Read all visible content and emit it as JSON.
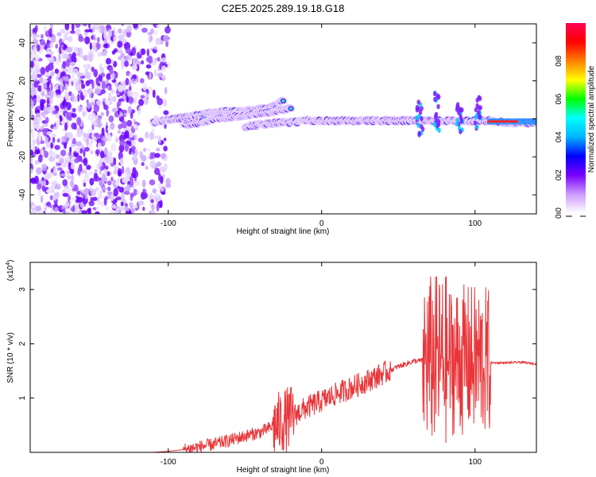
{
  "chart_data": [
    {
      "type": "heatmap",
      "title": "C2E5.2025.289.19.18.G18",
      "xlabel": "Height of straight line (km)",
      "ylabel": "Frequency (Hz)",
      "xlim": [
        -190,
        140
      ],
      "ylim": [
        -50,
        50
      ],
      "xticks": [
        -100,
        0,
        100
      ],
      "yticks": [
        -40,
        -20,
        0,
        20,
        40
      ],
      "tracks": [
        {
          "x": [
            -110,
            -95,
            -80,
            -65,
            -50,
            -40,
            -30,
            -25
          ],
          "y": [
            -2,
            0,
            2,
            4,
            4,
            5,
            7,
            10
          ]
        },
        {
          "x": [
            -90,
            -80,
            -70,
            -60,
            -50,
            -40,
            -30,
            -20
          ],
          "y": [
            -3,
            -2,
            0,
            1,
            2,
            3,
            4,
            6
          ]
        },
        {
          "x": [
            -50,
            -40,
            -30,
            -20,
            -10,
            0,
            10,
            20,
            30,
            40,
            50,
            60,
            70,
            80,
            90,
            100,
            110,
            120,
            140
          ],
          "y": [
            -4,
            -3,
            -2,
            -2,
            -1,
            -1,
            -1,
            -1,
            -1,
            -1,
            -1,
            -1,
            -1,
            -1,
            -1,
            -1,
            -1,
            -2,
            -2
          ]
        }
      ],
      "bursts": [
        {
          "x": 64,
          "y_range": [
            -12,
            10
          ]
        },
        {
          "x": 75,
          "y_range": [
            -8,
            14
          ]
        },
        {
          "x": 90,
          "y_range": [
            -9,
            9
          ]
        },
        {
          "x": 102,
          "y_range": [
            -6,
            12
          ]
        }
      ],
      "colorbar": {
        "label": "Normalized spectral amplitude",
        "range": [
          0,
          1
        ],
        "ticks": [
          "0.0",
          "0.2",
          "0.4",
          "0.6",
          "0.8"
        ],
        "colors": [
          "#ffffff",
          "#cc99ff",
          "#7a00ff",
          "#0000ff",
          "#00b4ff",
          "#00ffff",
          "#00ff00",
          "#ffff00",
          "#ff8000",
          "#ff0000",
          "#ff0055"
        ]
      }
    },
    {
      "type": "line",
      "title": "",
      "xlabel": "Height of straight line (km)",
      "ylabel": "SNR (10 * v/v)",
      "multiplier": "(x10",
      "multiplier_exp": "4",
      "multiplier_close": ")",
      "xlim": [
        -190,
        140
      ],
      "ylim": [
        0,
        3.5
      ],
      "xticks": [
        -100,
        0,
        100
      ],
      "yticks": [
        1,
        2,
        3
      ],
      "color": "#e8363a",
      "trend": {
        "x": [
          -190,
          -110,
          -100,
          -90,
          -80,
          -70,
          -60,
          -50,
          -40,
          -30,
          -20,
          -10,
          0,
          10,
          20,
          30,
          40,
          50,
          60,
          70,
          80,
          90,
          100,
          110,
          120,
          130,
          140
        ],
        "y": [
          0.0,
          0.0,
          0.02,
          0.05,
          0.1,
          0.15,
          0.22,
          0.3,
          0.37,
          0.5,
          0.65,
          0.82,
          0.95,
          1.08,
          1.2,
          1.32,
          1.45,
          1.58,
          1.68,
          1.7,
          1.7,
          1.7,
          1.7,
          1.65,
          1.65,
          1.66,
          1.63
        ]
      },
      "noise_regions": [
        {
          "x_range": [
            -90,
            -30
          ],
          "amplitude": 0.12
        },
        {
          "x_range": [
            -32,
            -18
          ],
          "amplitude": 0.6
        },
        {
          "x_range": [
            -18,
            45
          ],
          "amplitude": 0.22
        },
        {
          "x_range": [
            45,
            66
          ],
          "amplitude": 0.05
        },
        {
          "x_range": [
            66,
            82
          ],
          "amplitude": 1.6
        },
        {
          "x_range": [
            82,
            110
          ],
          "amplitude": 1.4
        }
      ]
    }
  ]
}
